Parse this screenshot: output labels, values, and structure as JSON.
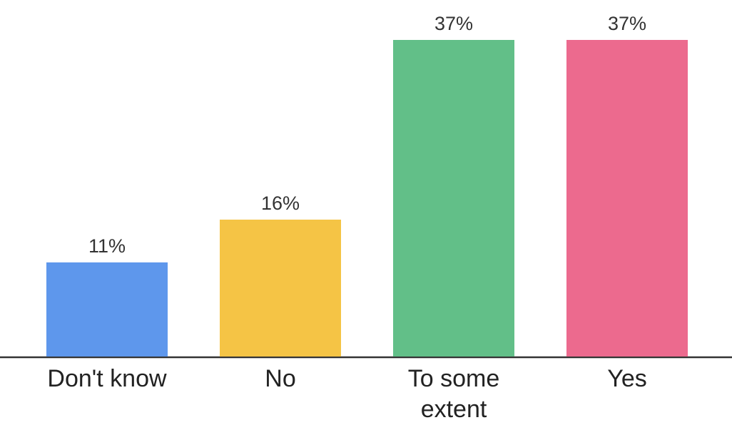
{
  "chart_data": {
    "type": "bar",
    "categories": [
      "Don't know",
      "No",
      "To some extent",
      "Yes"
    ],
    "values": [
      11,
      16,
      37,
      37
    ],
    "value_labels": [
      "11%",
      "16%",
      "37%",
      "37%"
    ],
    "colors": [
      "#5e97ec",
      "#f5c445",
      "#62bf88",
      "#ec6a8e"
    ]
  }
}
